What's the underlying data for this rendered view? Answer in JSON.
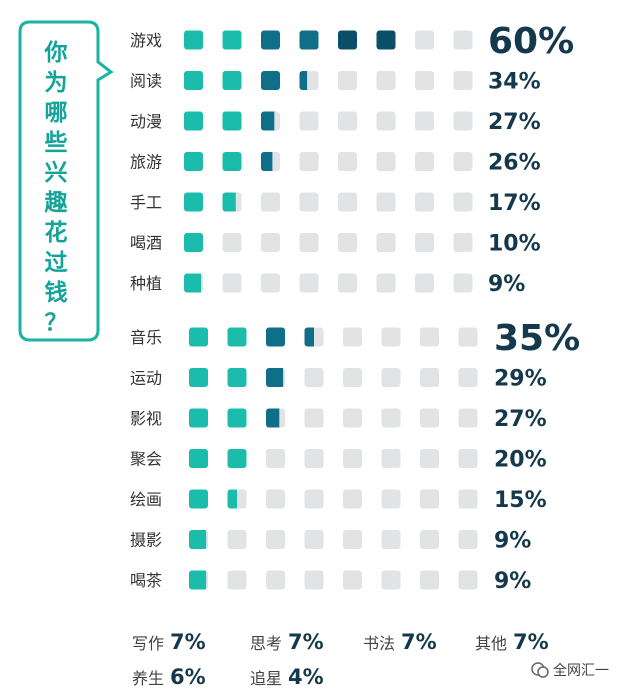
{
  "title_chars": [
    "你",
    "为",
    "哪",
    "些",
    "兴",
    "趣",
    "花",
    "过",
    "钱",
    "？"
  ],
  "chart_data": {
    "type": "bar",
    "groups": [
      {
        "items": [
          {
            "label": "游戏",
            "value": 60,
            "text": "60%"
          },
          {
            "label": "阅读",
            "value": 34,
            "text": "34%"
          },
          {
            "label": "动漫",
            "value": 27,
            "text": "27%"
          },
          {
            "label": "旅游",
            "value": 26,
            "text": "26%"
          },
          {
            "label": "手工",
            "value": 17,
            "text": "17%"
          },
          {
            "label": "喝酒",
            "value": 10,
            "text": "10%"
          },
          {
            "label": "种植",
            "value": 9,
            "text": "9%"
          }
        ]
      },
      {
        "items": [
          {
            "label": "音乐",
            "value": 35,
            "text": "35%"
          },
          {
            "label": "运动",
            "value": 29,
            "text": "29%"
          },
          {
            "label": "影视",
            "value": 27,
            "text": "27%"
          },
          {
            "label": "聚会",
            "value": 20,
            "text": "20%"
          },
          {
            "label": "绘画",
            "value": 15,
            "text": "15%"
          },
          {
            "label": "摄影",
            "value": 9,
            "text": "9%"
          },
          {
            "label": "喝茶",
            "value": 9,
            "text": "9%"
          }
        ]
      }
    ],
    "footer": [
      {
        "label": "写作",
        "text": "7%"
      },
      {
        "label": "思考",
        "text": "7%"
      },
      {
        "label": "书法",
        "text": "7%"
      },
      {
        "label": "其他",
        "text": "7%"
      },
      {
        "label": "养生",
        "text": "6%"
      },
      {
        "label": "追星",
        "text": "4%"
      }
    ]
  },
  "watermark": "全网汇一",
  "colors": {
    "teal": "#1bbcab",
    "dark": "#0f6e88",
    "darker": "#0a4f67",
    "empty": "#e1e3e4",
    "text": "#15394c"
  }
}
